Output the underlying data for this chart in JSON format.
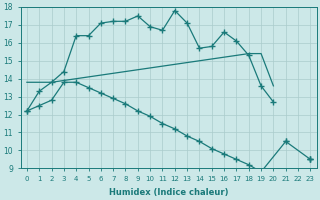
{
  "xlabel": "Humidex (Indice chaleur)",
  "xlim": [
    -0.5,
    23.5
  ],
  "ylim": [
    9,
    18
  ],
  "xticks": [
    0,
    1,
    2,
    3,
    4,
    5,
    6,
    7,
    8,
    9,
    10,
    11,
    12,
    13,
    14,
    15,
    16,
    17,
    18,
    19,
    20,
    21,
    22,
    23
  ],
  "yticks": [
    9,
    10,
    11,
    12,
    13,
    14,
    15,
    16,
    17,
    18
  ],
  "bg_color": "#cce8e8",
  "grid_color": "#aacccc",
  "line_color": "#1a7a7a",
  "line1_x": [
    0,
    1,
    2,
    3,
    4,
    5,
    6,
    7,
    8,
    9,
    10,
    11,
    12,
    13,
    14,
    15,
    16,
    17,
    18,
    19,
    20
  ],
  "line1_y": [
    12.2,
    13.3,
    13.8,
    14.4,
    16.4,
    16.4,
    17.1,
    17.2,
    17.2,
    17.5,
    16.9,
    16.7,
    17.8,
    17.1,
    15.7,
    15.8,
    16.6,
    16.1,
    15.3,
    13.6,
    12.7
  ],
  "line2_x": [
    0,
    1,
    2,
    3,
    4,
    5,
    6,
    7,
    8,
    9,
    10,
    11,
    12,
    13,
    14,
    15,
    16,
    17,
    18,
    19,
    20
  ],
  "line2_y": [
    13.8,
    13.8,
    13.8,
    13.9,
    14.0,
    14.1,
    14.2,
    14.3,
    14.4,
    14.5,
    14.6,
    14.7,
    14.8,
    14.9,
    15.0,
    15.1,
    15.2,
    15.3,
    15.4,
    15.4,
    13.6
  ],
  "line3_x": [
    0,
    1,
    2,
    3,
    4,
    5,
    6,
    7,
    8,
    9,
    10,
    11,
    12,
    13,
    14,
    15,
    16,
    17,
    18,
    19,
    20,
    21,
    22,
    23
  ],
  "line3_y": [
    12.2,
    12.5,
    12.8,
    13.8,
    13.8,
    13.5,
    13.2,
    12.9,
    12.6,
    12.2,
    11.9,
    11.5,
    11.2,
    10.8,
    10.5,
    10.1,
    9.8,
    9.5,
    9.2,
    8.8,
    null,
    10.5,
    null,
    9.5
  ]
}
